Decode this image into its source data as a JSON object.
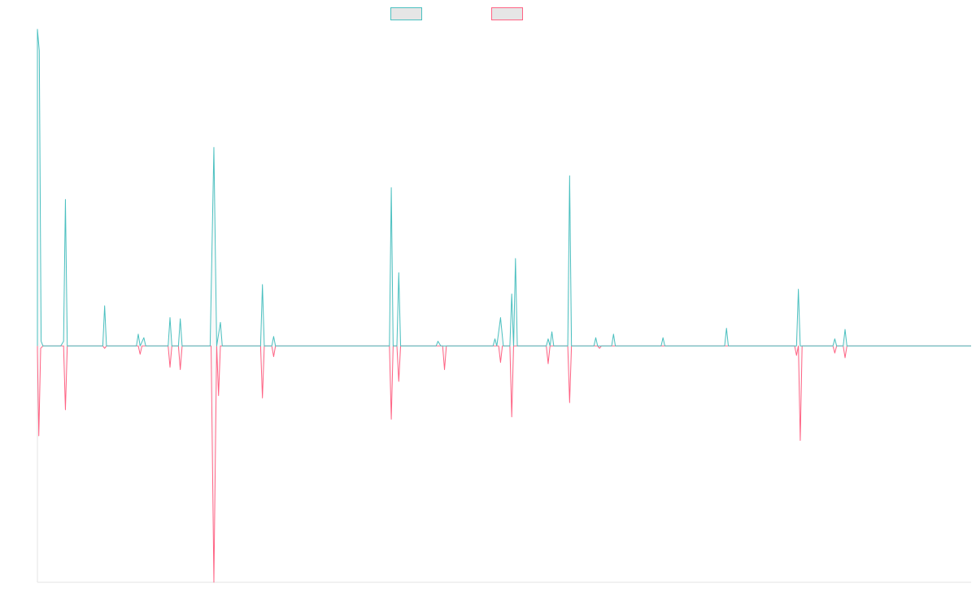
{
  "chart_data": {
    "type": "line",
    "title": "",
    "xlabel": "",
    "ylabel": "",
    "legend_position": "top-center",
    "grid": false,
    "x_range": [
      0,
      100
    ],
    "ylim": [
      -1.0,
      1.34
    ],
    "series": [
      {
        "color": "#4bc0c0",
        "fill": "#e6e6e6",
        "points": [
          [
            0,
            0
          ],
          [
            0.0,
            1.34
          ],
          [
            0.2,
            1.25
          ],
          [
            0.4,
            0.02
          ],
          [
            0.6,
            0
          ],
          [
            2.5,
            0
          ],
          [
            2.8,
            0.02
          ],
          [
            3.0,
            0.62
          ],
          [
            3.2,
            0
          ],
          [
            7.0,
            0
          ],
          [
            7.2,
            0.17
          ],
          [
            7.4,
            0
          ],
          [
            10.6,
            0
          ],
          [
            10.8,
            0.05
          ],
          [
            11.0,
            0
          ],
          [
            11.4,
            0.035
          ],
          [
            11.6,
            0
          ],
          [
            14.0,
            0
          ],
          [
            14.2,
            0.12
          ],
          [
            14.4,
            0
          ],
          [
            15.1,
            0
          ],
          [
            15.3,
            0.115
          ],
          [
            15.5,
            0
          ],
          [
            18.5,
            0
          ],
          [
            18.9,
            0.84
          ],
          [
            19.2,
            0
          ],
          [
            19.6,
            0.1
          ],
          [
            19.8,
            0
          ],
          [
            23.9,
            0
          ],
          [
            24.1,
            0.26
          ],
          [
            24.3,
            0
          ],
          [
            25.1,
            0
          ],
          [
            25.3,
            0.04
          ],
          [
            25.5,
            0
          ],
          [
            37.7,
            0
          ],
          [
            37.9,
            0.67
          ],
          [
            38.1,
            0
          ],
          [
            38.5,
            0
          ],
          [
            38.7,
            0.31
          ],
          [
            38.9,
            0
          ],
          [
            42.7,
            0
          ],
          [
            42.9,
            0.02
          ],
          [
            43.2,
            0
          ],
          [
            48.8,
            0
          ],
          [
            49.0,
            0.03
          ],
          [
            49.2,
            0
          ],
          [
            49.6,
            0.12
          ],
          [
            49.9,
            0
          ],
          [
            50.6,
            0
          ],
          [
            50.8,
            0.22
          ],
          [
            51.0,
            0
          ],
          [
            51.2,
            0.37
          ],
          [
            51.4,
            0
          ],
          [
            54.5,
            0
          ],
          [
            54.7,
            0.03
          ],
          [
            54.9,
            0
          ],
          [
            55.1,
            0.06
          ],
          [
            55.3,
            0
          ],
          [
            56.8,
            0
          ],
          [
            57.0,
            0.72
          ],
          [
            57.2,
            0
          ],
          [
            59.6,
            0
          ],
          [
            59.8,
            0.035
          ],
          [
            60.0,
            0
          ],
          [
            61.5,
            0
          ],
          [
            61.7,
            0.05
          ],
          [
            61.9,
            0
          ],
          [
            66.8,
            0
          ],
          [
            67.0,
            0.035
          ],
          [
            67.2,
            0
          ],
          [
            73.6,
            0
          ],
          [
            73.8,
            0.075
          ],
          [
            74.0,
            0
          ],
          [
            81.3,
            0
          ],
          [
            81.5,
            0.24
          ],
          [
            81.7,
            0
          ],
          [
            85.2,
            0
          ],
          [
            85.4,
            0.03
          ],
          [
            85.6,
            0
          ],
          [
            86.3,
            0
          ],
          [
            86.5,
            0.07
          ],
          [
            86.7,
            0
          ],
          [
            100,
            0
          ]
        ]
      },
      {
        "color": "#ff6384",
        "fill": "#e6e6e6",
        "points": [
          [
            0,
            0
          ],
          [
            0.0,
            -0.02
          ],
          [
            0.15,
            -0.38
          ],
          [
            0.35,
            -0.01
          ],
          [
            0.6,
            0
          ],
          [
            2.8,
            0
          ],
          [
            3.0,
            -0.27
          ],
          [
            3.2,
            0
          ],
          [
            7.0,
            0
          ],
          [
            7.2,
            -0.01
          ],
          [
            7.4,
            0
          ],
          [
            10.8,
            0
          ],
          [
            11.0,
            -0.035
          ],
          [
            11.2,
            0
          ],
          [
            14.0,
            0
          ],
          [
            14.2,
            -0.09
          ],
          [
            14.4,
            0
          ],
          [
            15.1,
            0
          ],
          [
            15.3,
            -0.1
          ],
          [
            15.5,
            0
          ],
          [
            18.6,
            0
          ],
          [
            18.9,
            -1.0
          ],
          [
            19.2,
            0
          ],
          [
            19.4,
            -0.21
          ],
          [
            19.6,
            0
          ],
          [
            23.9,
            0
          ],
          [
            24.1,
            -0.22
          ],
          [
            24.3,
            0
          ],
          [
            25.1,
            0
          ],
          [
            25.3,
            -0.045
          ],
          [
            25.5,
            0
          ],
          [
            37.7,
            0
          ],
          [
            37.9,
            -0.31
          ],
          [
            38.1,
            0
          ],
          [
            38.5,
            0
          ],
          [
            38.7,
            -0.15
          ],
          [
            38.9,
            0
          ],
          [
            43.4,
            0
          ],
          [
            43.6,
            -0.1
          ],
          [
            43.8,
            0
          ],
          [
            49.4,
            0
          ],
          [
            49.6,
            -0.07
          ],
          [
            49.8,
            0
          ],
          [
            50.6,
            0
          ],
          [
            50.8,
            -0.3
          ],
          [
            51.0,
            0
          ],
          [
            54.5,
            0
          ],
          [
            54.7,
            -0.075
          ],
          [
            54.9,
            0
          ],
          [
            56.8,
            0
          ],
          [
            57.0,
            -0.24
          ],
          [
            57.2,
            0
          ],
          [
            60.0,
            0
          ],
          [
            60.2,
            -0.01
          ],
          [
            60.4,
            0
          ],
          [
            81.1,
            0
          ],
          [
            81.3,
            -0.04
          ],
          [
            81.5,
            0
          ],
          [
            81.7,
            -0.4
          ],
          [
            81.9,
            0
          ],
          [
            85.2,
            0
          ],
          [
            85.4,
            -0.03
          ],
          [
            85.6,
            0
          ],
          [
            86.3,
            0
          ],
          [
            86.5,
            -0.05
          ],
          [
            86.7,
            0
          ],
          [
            100,
            0
          ]
        ]
      }
    ]
  }
}
